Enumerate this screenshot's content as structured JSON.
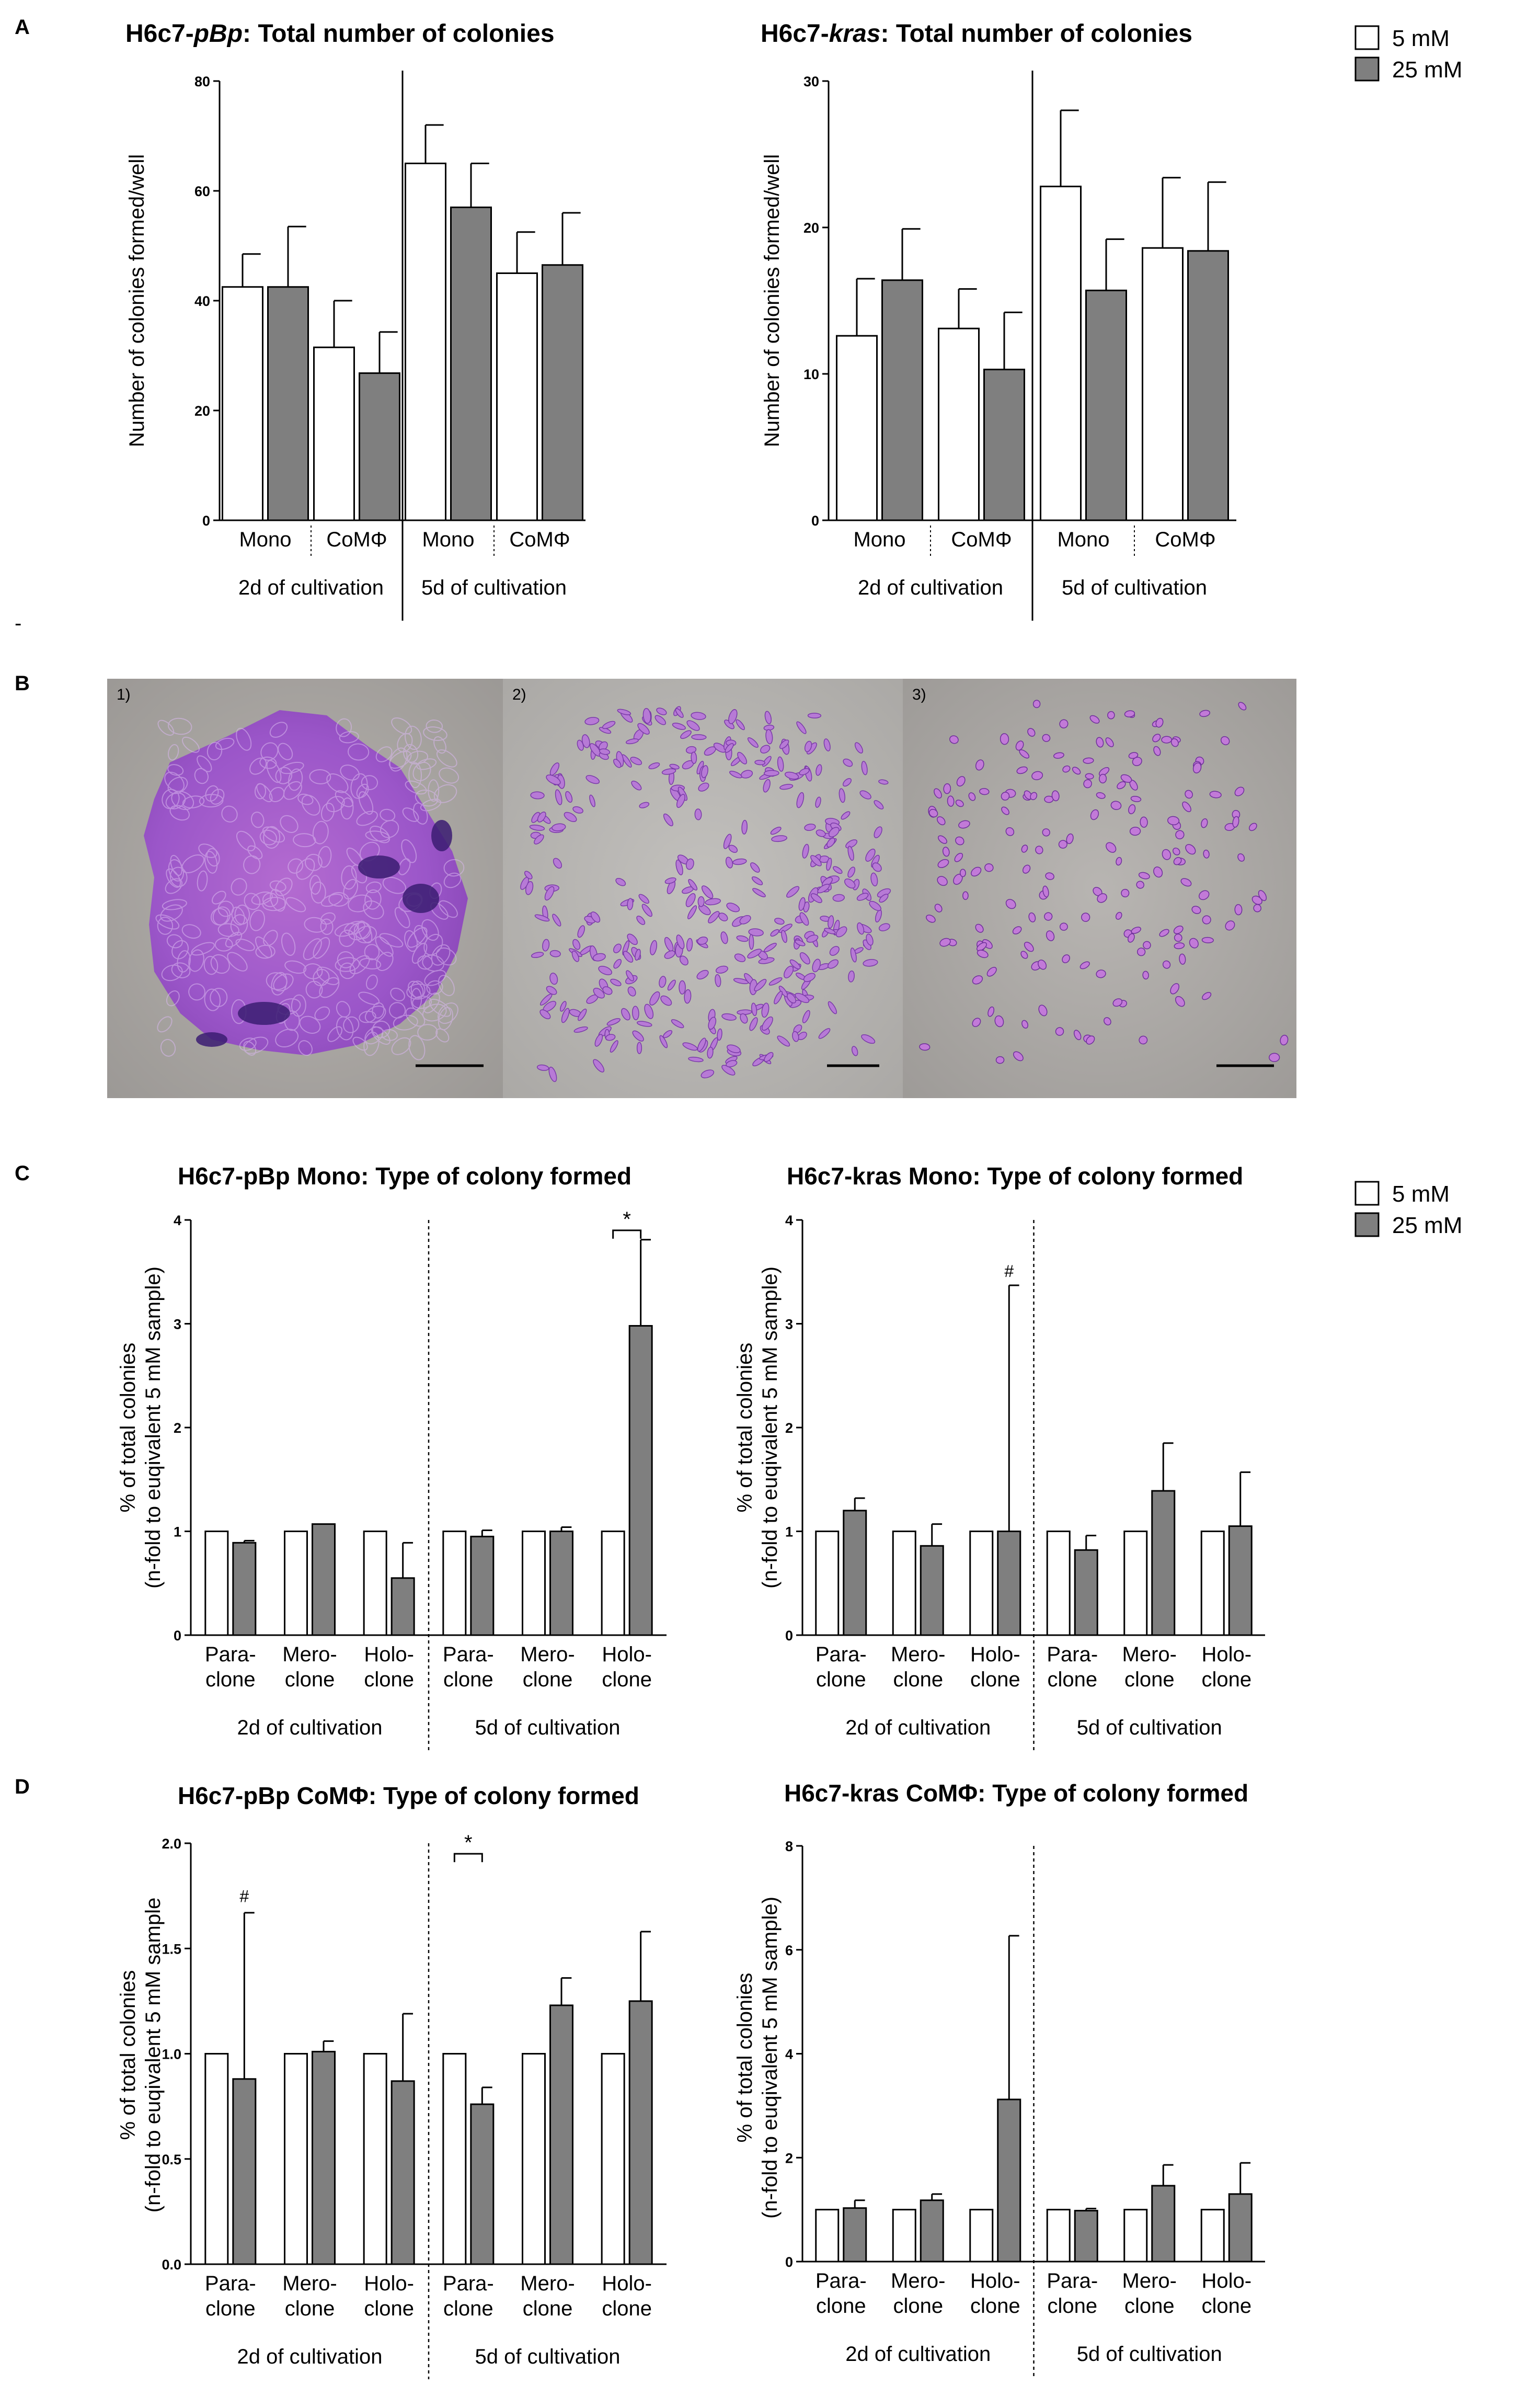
{
  "panels": {
    "A": "A",
    "B": "B",
    "C": "C",
    "D": "D",
    "dash": "-"
  },
  "legend": {
    "items": [
      {
        "label": "5 mM",
        "color": "#ffffff"
      },
      {
        "label": "25 mM",
        "color": "#7f7f7f"
      }
    ]
  },
  "micrographs": {
    "labels": [
      "1)",
      "2)",
      "3)"
    ]
  },
  "colors": {
    "bar_5mM": "#ffffff",
    "bar_25mM": "#7f7f7f",
    "stroke": "#000000"
  },
  "chart_data": [
    {
      "id": "chartA1",
      "type": "bar",
      "title_parts": [
        {
          "text": "H6c7-",
          "italic": false
        },
        {
          "text": "pBp",
          "italic": true
        },
        {
          "text": ": Total number of colonies",
          "italic": false
        }
      ],
      "ylabel": [
        "Number of colonies formed/well"
      ],
      "ylim": [
        0,
        80
      ],
      "yticks": [
        "0",
        "20",
        "40",
        "60",
        "80"
      ],
      "series_names": [
        "5 mM",
        "25 mM"
      ],
      "groups": [
        {
          "label": "Mono",
          "values": [
            42.5,
            42.5
          ],
          "errors": [
            6,
            11
          ]
        },
        {
          "label": "CoMΦ",
          "values": [
            31.5,
            26.8
          ],
          "errors": [
            8.5,
            7.5
          ]
        },
        {
          "label": "Mono",
          "values": [
            65,
            57
          ],
          "errors": [
            7,
            8
          ]
        },
        {
          "label": "CoMΦ",
          "values": [
            45,
            46.5
          ],
          "errors": [
            7.5,
            9.5
          ]
        }
      ],
      "sections": [
        "2d of cultivation",
        "5d of cultivation"
      ],
      "annotations": []
    },
    {
      "id": "chartA2",
      "type": "bar",
      "title_parts": [
        {
          "text": "H6c7-",
          "italic": false
        },
        {
          "text": "kras",
          "italic": true
        },
        {
          "text": ": Total number of colonies",
          "italic": false
        }
      ],
      "ylabel": [
        "Number of colonies formed/well"
      ],
      "ylim": [
        0,
        30
      ],
      "yticks": [
        "0",
        "10",
        "20",
        "30"
      ],
      "series_names": [
        "5 mM",
        "25 mM"
      ],
      "groups": [
        {
          "label": "Mono",
          "values": [
            12.6,
            16.4
          ],
          "errors": [
            3.9,
            3.5
          ]
        },
        {
          "label": "CoMΦ",
          "values": [
            13.1,
            10.3
          ],
          "errors": [
            2.7,
            3.9
          ]
        },
        {
          "label": "Mono",
          "values": [
            22.8,
            15.7
          ],
          "errors": [
            5.2,
            3.5
          ]
        },
        {
          "label": "CoMΦ",
          "values": [
            18.6,
            18.4
          ],
          "errors": [
            4.8,
            4.7
          ]
        }
      ],
      "sections": [
        "2d of cultivation",
        "5d of cultivation"
      ],
      "annotations": []
    },
    {
      "id": "chartC1",
      "type": "bar",
      "title_parts": [
        {
          "text": "H6c7-pBp Mono: Type of colony formed",
          "italic": false
        }
      ],
      "ylabel": [
        "% of total colonies",
        "(n-fold to euqivalent 5 mM sample)"
      ],
      "ylim": [
        0,
        4
      ],
      "yticks": [
        "0",
        "1",
        "2",
        "3",
        "4"
      ],
      "series_names": [
        "5 mM",
        "25 mM"
      ],
      "groups": [
        {
          "label": "Para-|clone",
          "values": [
            1,
            0.89
          ],
          "errors": [
            0,
            0.02
          ]
        },
        {
          "label": "Mero-|clone",
          "values": [
            1,
            1.07
          ],
          "errors": [
            0,
            0
          ]
        },
        {
          "label": "Holo-|clone",
          "values": [
            1,
            0.55
          ],
          "errors": [
            0,
            0.34
          ]
        },
        {
          "label": "Para-|clone",
          "values": [
            1,
            0.95
          ],
          "errors": [
            0,
            0.06
          ]
        },
        {
          "label": "Mero-|clone",
          "values": [
            1,
            1.0
          ],
          "errors": [
            0,
            0.04
          ]
        },
        {
          "label": "Holo-|clone",
          "values": [
            1,
            2.98
          ],
          "errors": [
            0,
            0.83
          ]
        }
      ],
      "sections": [
        "2d of cultivation",
        "5d of cultivation"
      ],
      "annotations": [
        {
          "text": "*",
          "group": 5,
          "bracket": true,
          "level": 3.9
        }
      ]
    },
    {
      "id": "chartC2",
      "type": "bar",
      "title_parts": [
        {
          "text": "H6c7-kras Mono: Type of colony formed",
          "italic": false
        }
      ],
      "ylabel": [
        "% of total colonies",
        "(n-fold to euqivalent 5 mM sample)"
      ],
      "ylim": [
        0,
        4
      ],
      "yticks": [
        "0",
        "1",
        "2",
        "3",
        "4"
      ],
      "series_names": [
        "5 mM",
        "25 mM"
      ],
      "groups": [
        {
          "label": "Para-|clone",
          "values": [
            1,
            1.2
          ],
          "errors": [
            0,
            0.12
          ]
        },
        {
          "label": "Mero-|clone",
          "values": [
            1,
            0.86
          ],
          "errors": [
            0,
            0.21
          ]
        },
        {
          "label": "Holo-|clone",
          "values": [
            1,
            1.0
          ],
          "errors": [
            0,
            2.37
          ]
        },
        {
          "label": "Para-|clone",
          "values": [
            1,
            0.82
          ],
          "errors": [
            0,
            0.14
          ]
        },
        {
          "label": "Mero-|clone",
          "values": [
            1,
            1.39
          ],
          "errors": [
            0,
            0.46
          ]
        },
        {
          "label": "Holo-|clone",
          "values": [
            1,
            1.05
          ],
          "errors": [
            0,
            0.52
          ]
        }
      ],
      "sections": [
        "2d of cultivation",
        "5d of cultivation"
      ],
      "annotations": [
        {
          "text": "#",
          "group": 2,
          "bracket": false,
          "level": 3.45
        }
      ]
    },
    {
      "id": "chartD1",
      "type": "bar",
      "title_parts": [
        {
          "text": "H6c7-pBp CoMΦ: Type of colony formed",
          "italic": false
        }
      ],
      "ylabel": [
        "% of total colonies",
        "(n-fold to euqivalent 5 mM sample"
      ],
      "ylim": [
        0,
        2
      ],
      "yticks": [
        "0.0",
        "0.5",
        "1.0",
        "1.5",
        "2.0"
      ],
      "series_names": [
        "5 mM",
        "25 mM"
      ],
      "groups": [
        {
          "label": "Para-|clone",
          "values": [
            1,
            0.88
          ],
          "errors": [
            0,
            0.79
          ]
        },
        {
          "label": "Mero-|clone",
          "values": [
            1,
            1.01
          ],
          "errors": [
            0,
            0.05
          ]
        },
        {
          "label": "Holo-|clone",
          "values": [
            1,
            0.87
          ],
          "errors": [
            0,
            0.32
          ]
        },
        {
          "label": "Para-|clone",
          "values": [
            1,
            0.76
          ],
          "errors": [
            0,
            0.08
          ]
        },
        {
          "label": "Mero-|clone",
          "values": [
            1,
            1.23
          ],
          "errors": [
            0,
            0.13
          ]
        },
        {
          "label": "Holo-|clone",
          "values": [
            1,
            1.25
          ],
          "errors": [
            0,
            0.33
          ]
        }
      ],
      "sections": [
        "2d of cultivation",
        "5d of cultivation"
      ],
      "annotations": [
        {
          "text": "#",
          "group": 0,
          "bracket": false,
          "level": 1.72
        },
        {
          "text": "*",
          "group": 3,
          "bracket": true,
          "level": 1.95
        }
      ]
    },
    {
      "id": "chartD2",
      "type": "bar",
      "title_parts": [
        {
          "text": "H6c7-kras CoMΦ: Type of colony formed",
          "italic": false
        }
      ],
      "ylabel": [
        "% of total colonies",
        "(n-fold to euqivalent 5 mM sample)"
      ],
      "ylim": [
        0,
        8
      ],
      "yticks": [
        "0",
        "2",
        "4",
        "6",
        "8"
      ],
      "series_names": [
        "5 mM",
        "25 mM"
      ],
      "groups": [
        {
          "label": "Para-|clone",
          "values": [
            1,
            1.03
          ],
          "errors": [
            0,
            0.15
          ]
        },
        {
          "label": "Mero-|clone",
          "values": [
            1,
            1.18
          ],
          "errors": [
            0,
            0.12
          ]
        },
        {
          "label": "Holo-|clone",
          "values": [
            1,
            3.12
          ],
          "errors": [
            0,
            3.15
          ]
        },
        {
          "label": "Para-|clone",
          "values": [
            1,
            0.98
          ],
          "errors": [
            0,
            0.04
          ]
        },
        {
          "label": "Mero-|clone",
          "values": [
            1,
            1.46
          ],
          "errors": [
            0,
            0.4
          ]
        },
        {
          "label": "Holo-|clone",
          "values": [
            1,
            1.3
          ],
          "errors": [
            0,
            0.6
          ]
        }
      ],
      "sections": [
        "2d of cultivation",
        "5d of cultivation"
      ],
      "annotations": []
    }
  ]
}
